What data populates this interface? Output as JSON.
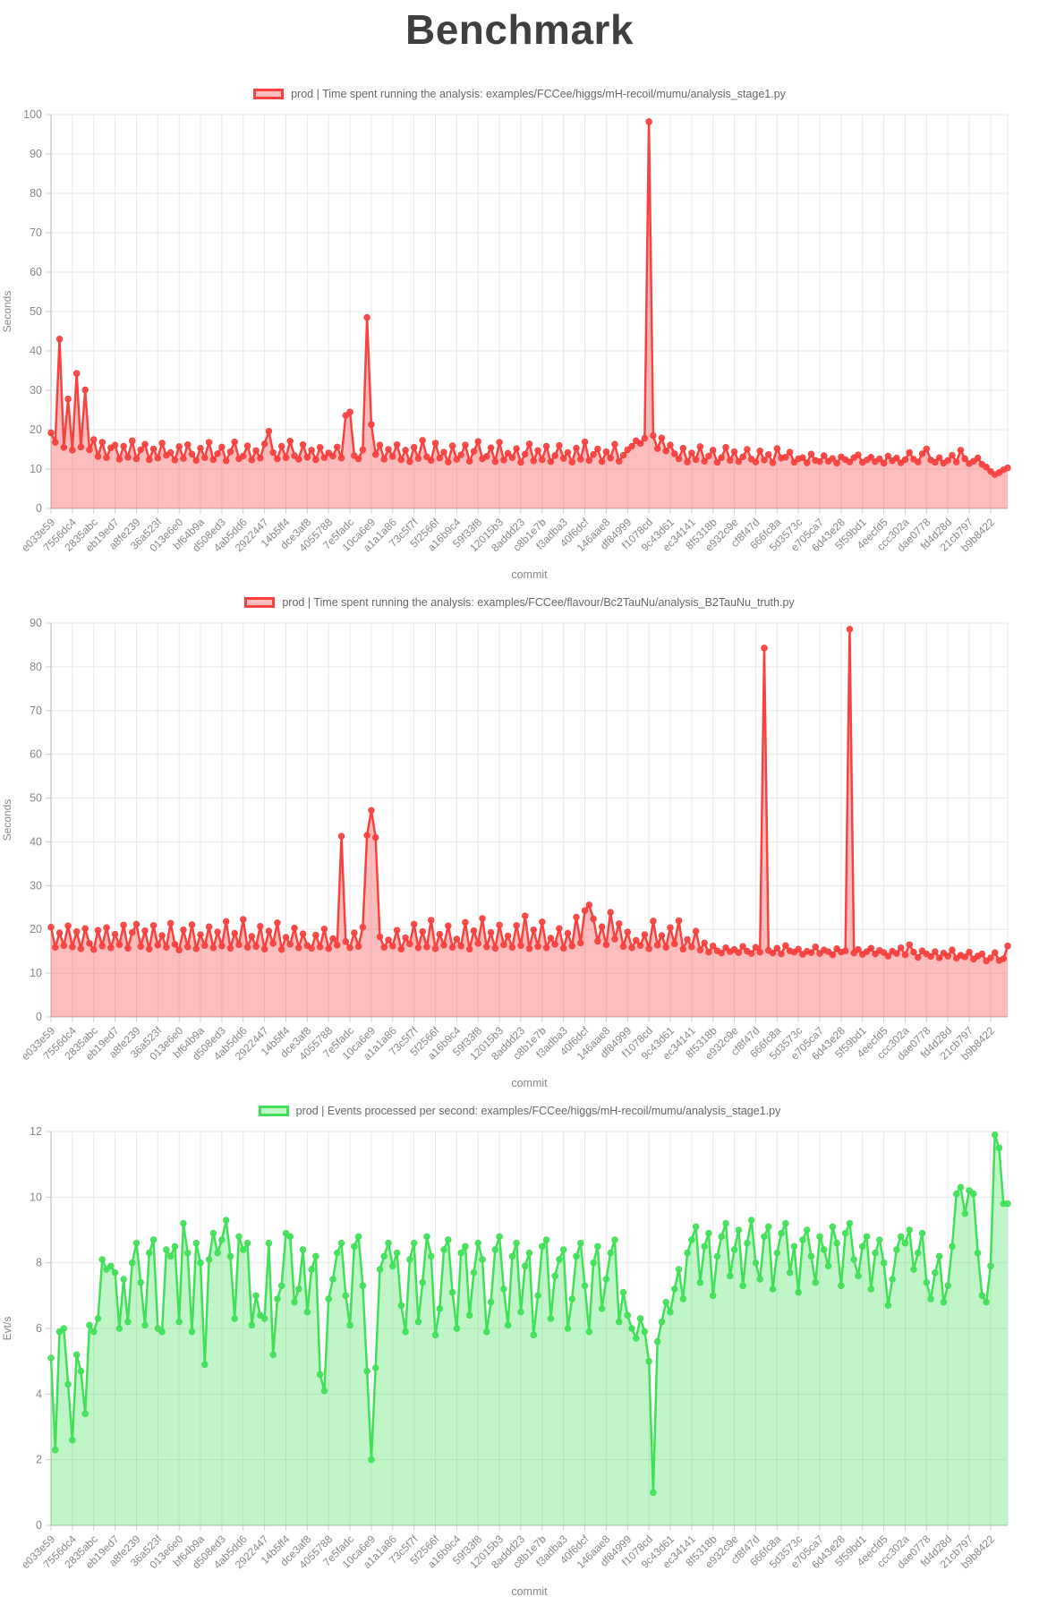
{
  "page": {
    "title": "Benchmark"
  },
  "chart_data": [
    {
      "type": "line",
      "legend_label": "prod | Time spent running the analysis: examples/FCCee/higgs/mH-recoil/mumu/analysis_stage1.py",
      "legend_position": "top",
      "xlabel": "commit",
      "ylabel": "Seconds",
      "ylim": [
        0,
        100
      ],
      "y_step": 10,
      "grid": true,
      "color": "#f8423f",
      "fill_opacity": 0.35,
      "label_every": 5,
      "x_tick_labels": [
        "e033e59",
        "7556dc4",
        "2835abc",
        "eb19ed7",
        "a8fe239",
        "36a523f",
        "013e6e0",
        "bf64b9a",
        "d508ed3",
        "4ab5dd6",
        "2922447",
        "14b5ff4",
        "dce3af8",
        "4055788",
        "7e5fadc",
        "10ca6e9",
        "a1a1a86",
        "73c5f7f",
        "5f2566f",
        "a16b9c4",
        "59f33f8",
        "12015b3",
        "8addd23",
        "c8b1e7b",
        "f3adba3",
        "40f6dcf",
        "146aae8",
        "df84999",
        "f1078cd",
        "9c43d61",
        "ec34141",
        "8f5318b",
        "e932c9e",
        "cf8f47d",
        "666fc8a",
        "5d3573c",
        "e705ca7",
        "6d43e28",
        "5f59bd1",
        "4eecfd5",
        "ccc302a",
        "dae0778",
        "fd4d28d",
        "21cb797",
        "b9b8422"
      ],
      "values": [
        19.2,
        16.8,
        43.0,
        15.5,
        27.8,
        14.8,
        34.3,
        15.6,
        30.1,
        14.9,
        17.5,
        13.2,
        16.8,
        12.9,
        15.4,
        16.1,
        12.5,
        15.8,
        13.0,
        17.2,
        12.6,
        14.9,
        16.3,
        12.4,
        15.1,
        12.8,
        16.6,
        13.5,
        14.2,
        12.3,
        15.7,
        12.7,
        16.2,
        13.8,
        12.2,
        15.3,
        12.9,
        16.8,
        12.4,
        13.9,
        15.6,
        12.1,
        14.4,
        16.9,
        12.6,
        13.3,
        15.9,
        12.3,
        14.7,
        12.8,
        16.4,
        19.6,
        14.2,
        12.6,
        15.8,
        12.9,
        17.1,
        13.4,
        12.5,
        16.2,
        13.0,
        14.8,
        12.4,
        15.5,
        12.9,
        14.1,
        13.3,
        15.6,
        12.8,
        23.6,
        24.5,
        13.4,
        12.6,
        14.9,
        48.5,
        21.3,
        13.7,
        16.1,
        12.5,
        15.0,
        13.2,
        16.2,
        12.4,
        14.8,
        11.9,
        15.5,
        12.7,
        17.3,
        13.1,
        12.2,
        16.6,
        12.8,
        14.3,
        11.8,
        15.9,
        12.5,
        13.6,
        16.1,
        12.0,
        14.5,
        17.0,
        12.6,
        13.2,
        15.4,
        11.9,
        16.8,
        12.3,
        14.0,
        12.9,
        15.2,
        11.7,
        13.8,
        16.4,
        12.1,
        14.7,
        12.4,
        15.8,
        11.9,
        13.4,
        16.0,
        12.7,
        14.2,
        11.8,
        15.3,
        12.5,
        16.9,
        12.2,
        13.7,
        15.1,
        11.9,
        14.4,
        12.8,
        16.3,
        12.0,
        13.5,
        14.9,
        15.8,
        17.2,
        16.5,
        17.8,
        98.2,
        18.5,
        15.2,
        17.9,
        14.6,
        16.1,
        13.9,
        12.6,
        15.3,
        11.8,
        14.1,
        12.4,
        15.7,
        12.0,
        13.3,
        14.8,
        11.7,
        12.9,
        15.5,
        12.2,
        14.4,
        11.9,
        13.1,
        15.0,
        12.5,
        11.8,
        14.6,
        12.3,
        13.7,
        11.6,
        15.2,
        12.8,
        13.0,
        14.3,
        11.7,
        12.6,
        12.9,
        11.6,
        13.8,
        12.2,
        11.9,
        13.4,
        12.0,
        12.7,
        11.5,
        13.1,
        12.4,
        11.8,
        12.9,
        13.6,
        11.7,
        12.3,
        13.0,
        11.9,
        12.6,
        11.5,
        13.3,
        12.1,
        12.8,
        11.6,
        12.4,
        14.2,
        12.5,
        11.8,
        13.9,
        15.1,
        12.3,
        11.7,
        12.9,
        11.5,
        12.2,
        13.5,
        11.8,
        14.8,
        12.6,
        11.4,
        12.0,
        12.8,
        11.2,
        10.5,
        9.4,
        8.6,
        9.1,
        9.8,
        10.3
      ]
    },
    {
      "type": "line",
      "legend_label": "prod | Time spent running the analysis: examples/FCCee/flavour/Bc2TauNu/analysis_B2TauNu_truth.py",
      "legend_position": "top",
      "xlabel": "commit",
      "ylabel": "Seconds",
      "ylim": [
        0,
        90
      ],
      "y_step": 10,
      "grid": true,
      "color": "#f8423f",
      "fill_opacity": 0.35,
      "label_every": 5,
      "x_tick_labels": [
        "e033e59",
        "7556dc4",
        "2835abc",
        "eb19ed7",
        "a8fe239",
        "36a523f",
        "013e6e0",
        "bf64b9a",
        "d508ed3",
        "4ab5dd6",
        "2922447",
        "14b5ff4",
        "dce3af8",
        "4055788",
        "7e5fadc",
        "10ca6e9",
        "a1a1a86",
        "73c5f7f",
        "5f2566f",
        "a16b9c4",
        "59f33f8",
        "12015b3",
        "8addd23",
        "c8b1e7b",
        "f3adba3",
        "40f6dcf",
        "146aae8",
        "df84999",
        "f1078cd",
        "9c43d61",
        "ec34141",
        "8f5318b",
        "e932c9e",
        "cf8f47d",
        "666fc8a",
        "5d3573c",
        "e705ca7",
        "6d43e28",
        "5f59bd1",
        "4eecfd5",
        "ccc302a",
        "dae0778",
        "fd4d28d",
        "21cb797",
        "b9b8422"
      ],
      "values": [
        20.5,
        15.9,
        19.2,
        16.3,
        20.8,
        16.0,
        19.5,
        15.6,
        20.2,
        16.8,
        15.4,
        19.8,
        16.2,
        20.4,
        15.8,
        18.9,
        16.5,
        21.0,
        15.7,
        19.3,
        21.2,
        16.1,
        19.7,
        15.5,
        20.9,
        16.4,
        18.6,
        15.9,
        21.4,
        16.6,
        15.3,
        19.9,
        16.0,
        21.1,
        15.6,
        18.8,
        16.3,
        20.6,
        15.8,
        19.4,
        16.2,
        21.8,
        15.7,
        19.1,
        16.5,
        22.3,
        15.9,
        18.4,
        16.1,
        20.7,
        15.5,
        19.6,
        16.8,
        21.5,
        15.4,
        18.2,
        16.6,
        20.3,
        15.8,
        19.0,
        16.3,
        15.7,
        18.7,
        16.0,
        20.1,
        15.6,
        17.9,
        16.4,
        41.3,
        17.2,
        15.8,
        19.2,
        16.1,
        20.5,
        41.5,
        47.2,
        41.0,
        18.3,
        15.9,
        17.6,
        16.2,
        19.8,
        15.5,
        18.1,
        16.7,
        21.2,
        15.8,
        19.5,
        16.0,
        22.1,
        15.6,
        18.9,
        16.4,
        20.8,
        15.9,
        17.8,
        16.2,
        21.6,
        15.5,
        19.7,
        16.8,
        22.5,
        16.0,
        19.3,
        15.7,
        21.0,
        16.5,
        18.5,
        15.9,
        20.9,
        16.3,
        23.1,
        15.6,
        19.9,
        16.1,
        21.7,
        15.8,
        18.0,
        16.6,
        20.2,
        15.7,
        19.1,
        16.2,
        22.8,
        16.9,
        24.3,
        25.6,
        22.4,
        17.3,
        20.6,
        16.5,
        23.9,
        17.8,
        21.3,
        16.1,
        19.4,
        15.8,
        17.5,
        16.3,
        18.8,
        15.6,
        21.9,
        16.4,
        18.6,
        15.9,
        20.4,
        16.7,
        22.0,
        15.5,
        17.7,
        16.0,
        19.6,
        15.3,
        16.9,
        14.8,
        16.2,
        15.1,
        14.6,
        15.8,
        14.9,
        15.4,
        14.7,
        16.1,
        15.0,
        14.5,
        15.9,
        14.8,
        84.3,
        15.2,
        14.6,
        15.7,
        14.4,
        16.3,
        15.1,
        14.8,
        15.5,
        14.3,
        15.0,
        14.7,
        16.0,
        14.5,
        15.3,
        14.9,
        14.2,
        15.6,
        14.8,
        15.1,
        88.6,
        14.6,
        15.4,
        14.3,
        14.9,
        15.7,
        14.4,
        15.2,
        14.7,
        13.9,
        15.0,
        14.5,
        15.8,
        14.2,
        16.5,
        14.8,
        13.6,
        15.1,
        14.4,
        13.8,
        14.9,
        13.5,
        14.6,
        13.9,
        15.3,
        13.4,
        14.1,
        13.7,
        14.8,
        13.2,
        13.9,
        14.4,
        12.8,
        13.5,
        14.7,
        12.9,
        13.3,
        16.2
      ]
    },
    {
      "type": "line",
      "legend_label": "prod | Events processed per second: examples/FCCee/higgs/mH-recoil/mumu/analysis_stage1.py",
      "legend_position": "top",
      "xlabel": "commit",
      "ylabel": "Evt/s",
      "ylim": [
        0,
        12
      ],
      "y_step": 2,
      "grid": true,
      "color": "#41e058",
      "fill_opacity": 0.33,
      "label_every": 5,
      "x_tick_labels": [
        "e033e59",
        "7556dc4",
        "2835abc",
        "eb19ed7",
        "a8fe239",
        "36a523f",
        "013e6e0",
        "bf64b9a",
        "d508ed3",
        "4ab5dd6",
        "2922447",
        "14b5ff4",
        "dce3af8",
        "4055788",
        "7e5fadc",
        "10ca6e9",
        "a1a1a86",
        "73c5f7f",
        "5f2566f",
        "a16b9c4",
        "59f33f8",
        "12015b3",
        "8addd23",
        "c8b1e7b",
        "f3adba3",
        "40f6dcf",
        "146aae8",
        "df84999",
        "f1078cd",
        "9c43d61",
        "ec34141",
        "8f5318b",
        "e932c9e",
        "cf8f47d",
        "666fc8a",
        "5d3573c",
        "e705ca7",
        "6d43e28",
        "5f59bd1",
        "4eecfd5",
        "ccc302a",
        "dae0778",
        "fd4d28d",
        "21cb797",
        "b9b8422"
      ],
      "values": [
        5.1,
        2.3,
        5.9,
        6.0,
        4.3,
        2.6,
        5.2,
        4.7,
        3.4,
        6.1,
        5.9,
        6.3,
        8.1,
        7.8,
        7.9,
        7.7,
        6.0,
        7.5,
        6.2,
        8.0,
        8.6,
        7.4,
        6.1,
        8.3,
        8.7,
        6.0,
        5.9,
        8.4,
        8.2,
        8.5,
        6.2,
        9.2,
        8.3,
        5.9,
        8.6,
        8.0,
        4.9,
        8.1,
        8.9,
        8.3,
        8.7,
        9.3,
        8.2,
        6.3,
        8.8,
        8.4,
        8.6,
        6.1,
        7.0,
        6.4,
        6.3,
        8.6,
        5.2,
        6.9,
        7.3,
        8.9,
        8.8,
        6.8,
        7.2,
        8.4,
        6.5,
        7.8,
        8.2,
        4.6,
        4.1,
        6.9,
        7.5,
        8.3,
        8.6,
        7.0,
        6.1,
        8.5,
        8.8,
        7.3,
        4.7,
        2.0,
        4.8,
        7.8,
        8.2,
        8.6,
        7.9,
        8.3,
        6.7,
        5.9,
        8.1,
        8.6,
        6.2,
        7.4,
        8.8,
        8.2,
        5.8,
        6.6,
        8.4,
        8.7,
        7.1,
        6.0,
        8.3,
        8.5,
        6.4,
        7.7,
        8.6,
        8.1,
        5.9,
        6.8,
        8.4,
        8.8,
        7.2,
        6.1,
        8.2,
        8.6,
        6.5,
        7.9,
        8.3,
        5.8,
        7.0,
        8.5,
        8.7,
        6.3,
        7.6,
        8.1,
        8.4,
        6.0,
        6.9,
        8.2,
        8.6,
        7.3,
        5.9,
        8.0,
        8.5,
        6.6,
        7.5,
        8.3,
        8.7,
        6.2,
        7.1,
        6.4,
        6.0,
        5.7,
        6.3,
        5.9,
        5.0,
        1.0,
        5.6,
        6.2,
        6.8,
        6.5,
        7.2,
        7.8,
        6.9,
        8.3,
        8.7,
        9.1,
        7.4,
        8.5,
        8.9,
        7.0,
        8.2,
        8.8,
        9.2,
        7.6,
        8.4,
        9.0,
        7.3,
        8.6,
        9.3,
        8.0,
        7.5,
        8.8,
        9.1,
        7.2,
        8.3,
        8.9,
        9.2,
        7.7,
        8.5,
        7.1,
        8.7,
        9.0,
        8.2,
        7.4,
        8.8,
        8.4,
        7.9,
        9.1,
        8.6,
        7.3,
        8.9,
        9.2,
        8.1,
        7.6,
        8.5,
        8.8,
        7.2,
        8.3,
        8.7,
        8.0,
        6.7,
        7.5,
        8.4,
        8.8,
        8.6,
        9.0,
        7.8,
        8.3,
        8.9,
        7.4,
        6.9,
        7.7,
        8.2,
        6.8,
        7.3,
        8.5,
        10.1,
        10.3,
        9.5,
        10.2,
        10.1,
        8.3,
        7.0,
        6.8,
        7.9,
        11.9,
        11.5,
        9.8,
        9.8
      ]
    }
  ]
}
